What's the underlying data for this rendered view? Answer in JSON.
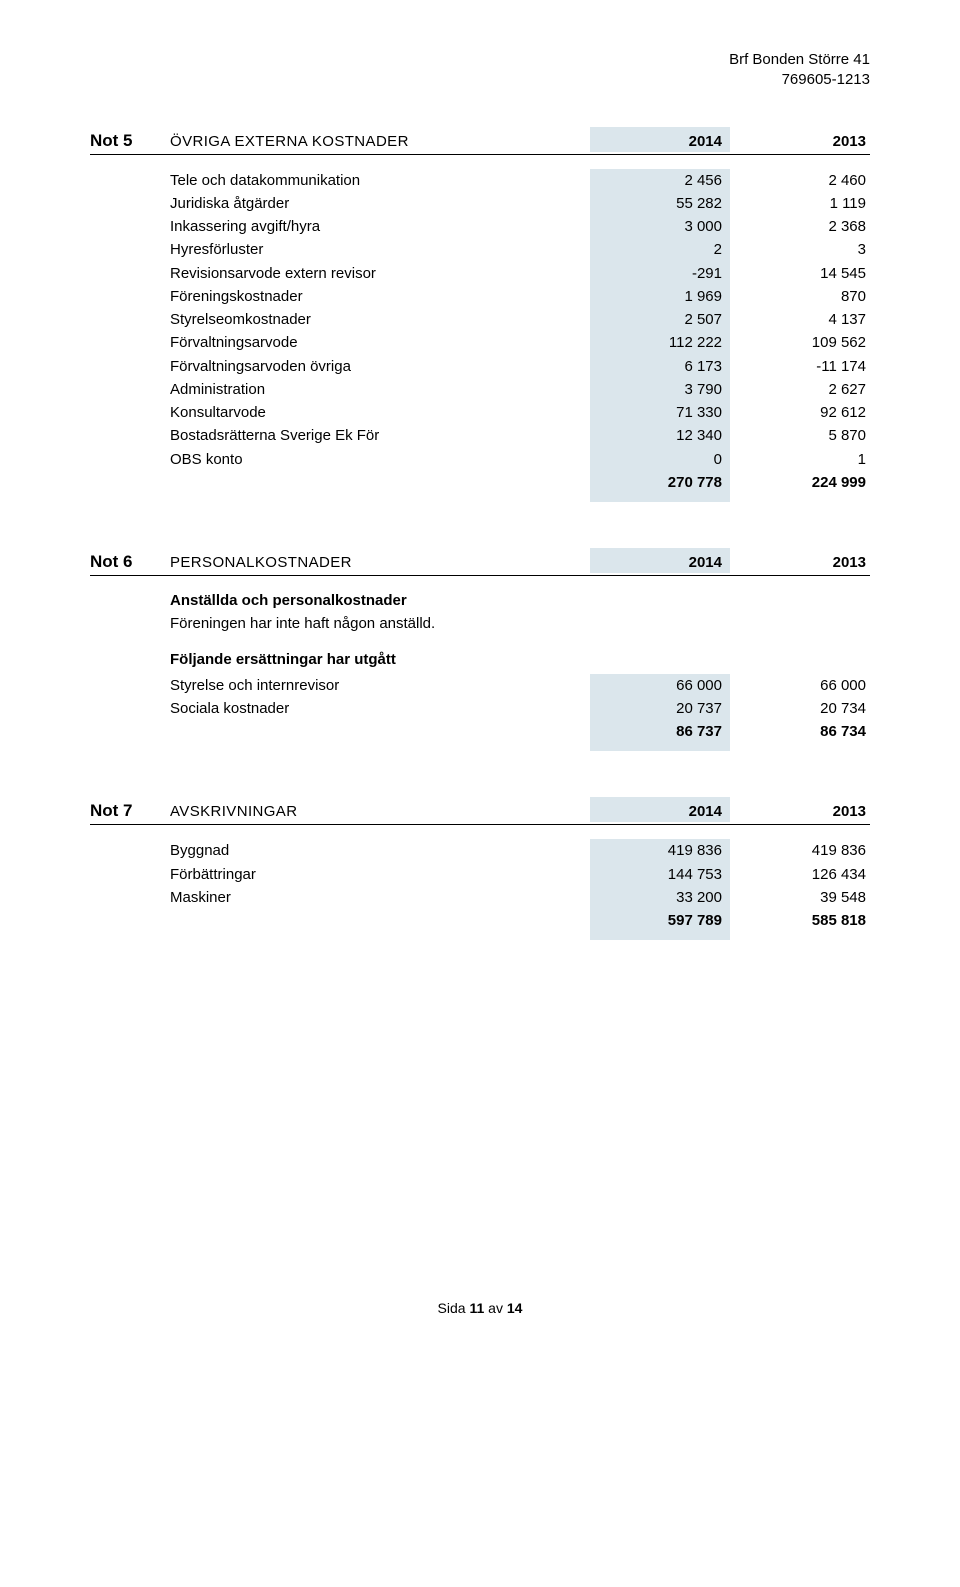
{
  "header": {
    "org_name": "Brf Bonden Större 41",
    "org_number": "769605-1213"
  },
  "note5": {
    "num": "Not 5",
    "title": "ÖVRIGA EXTERNA KOSTNADER",
    "year1": "2014",
    "year2": "2013",
    "rows": [
      {
        "label": "Tele och datakommunikation",
        "v1": "2 456",
        "v2": "2 460"
      },
      {
        "label": "Juridiska åtgärder",
        "v1": "55 282",
        "v2": "1 119"
      },
      {
        "label": "Inkassering avgift/hyra",
        "v1": "3 000",
        "v2": "2 368"
      },
      {
        "label": "Hyresförluster",
        "v1": "2",
        "v2": "3"
      },
      {
        "label": "Revisionsarvode extern revisor",
        "v1": "-291",
        "v2": "14 545"
      },
      {
        "label": "Föreningskostnader",
        "v1": "1 969",
        "v2": "870"
      },
      {
        "label": "Styrelseomkostnader",
        "v1": "2 507",
        "v2": "4 137"
      },
      {
        "label": "Förvaltningsarvode",
        "v1": "112 222",
        "v2": "109 562"
      },
      {
        "label": "Förvaltningsarvoden övriga",
        "v1": "6 173",
        "v2": "-11 174"
      },
      {
        "label": "Administration",
        "v1": "3 790",
        "v2": "2 627"
      },
      {
        "label": "Konsultarvode",
        "v1": "71 330",
        "v2": "92 612"
      },
      {
        "label": "Bostadsrätterna Sverige Ek För",
        "v1": "12 340",
        "v2": "5 870"
      },
      {
        "label": "OBS konto",
        "v1": "0",
        "v2": "1"
      }
    ],
    "total": {
      "v1": "270 778",
      "v2": "224 999"
    }
  },
  "note6": {
    "num": "Not 6",
    "title": "PERSONALKOSTNADER",
    "year1": "2014",
    "year2": "2013",
    "sub1_head": "Anställda och personalkostnader",
    "sub1_text": "Föreningen har inte haft någon anställd.",
    "sub2_head": "Följande ersättningar har utgått",
    "rows": [
      {
        "label": "Styrelse och internrevisor",
        "v1": "66 000",
        "v2": "66 000"
      },
      {
        "label": "Sociala kostnader",
        "v1": "20 737",
        "v2": "20 734"
      }
    ],
    "total": {
      "v1": "86 737",
      "v2": "86 734"
    }
  },
  "note7": {
    "num": "Not 7",
    "title": "AVSKRIVNINGAR",
    "year1": "2014",
    "year2": "2013",
    "rows": [
      {
        "label": "Byggnad",
        "v1": "419 836",
        "v2": "419 836"
      },
      {
        "label": "Förbättringar",
        "v1": "144 753",
        "v2": "126 434"
      },
      {
        "label": "Maskiner",
        "v1": "33 200",
        "v2": "39 548"
      }
    ],
    "total": {
      "v1": "597 789",
      "v2": "585 818"
    }
  },
  "footer": {
    "prefix": "Sida ",
    "page": "11",
    "middle": " av ",
    "total": "14"
  },
  "colors": {
    "shaded_bg": "#dbe6ec",
    "rule": "#000000",
    "text": "#000000"
  }
}
